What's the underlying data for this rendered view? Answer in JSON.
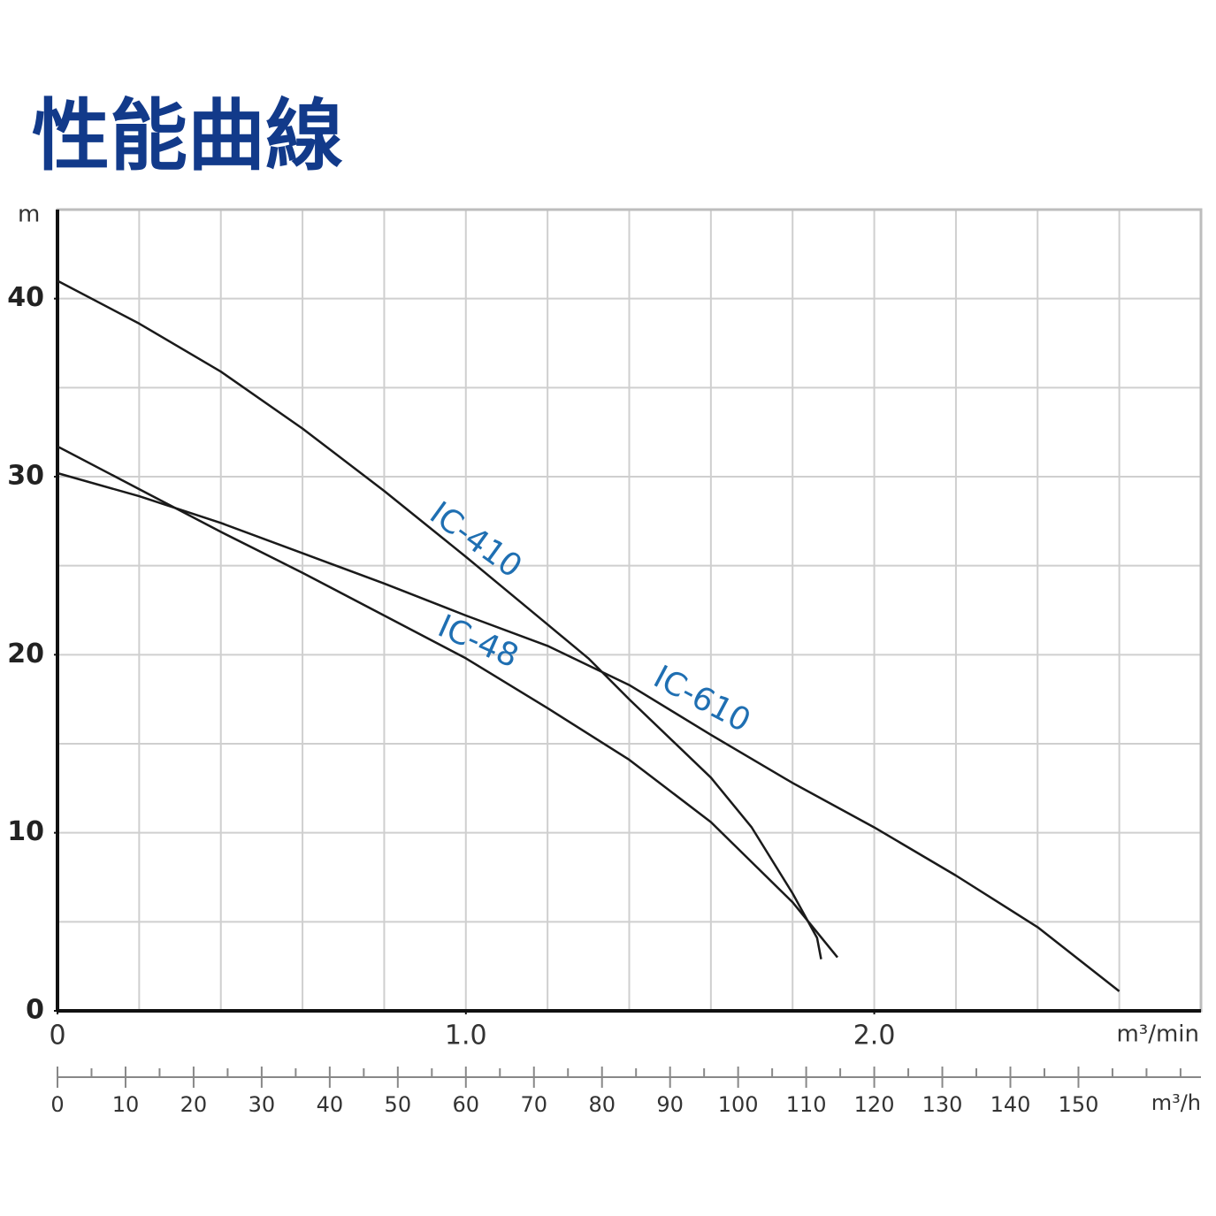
{
  "chart_data": {
    "type": "line",
    "title": "性能曲線",
    "y_label": "m",
    "x_label": "m³/min",
    "x2_label": "m³/h",
    "xlim": [
      0,
      2.8
    ],
    "xticks": [
      0,
      {
        "value": 1.0,
        "label": "1.0"
      },
      {
        "value": 2.0,
        "label": "2.0"
      }
    ],
    "xgrid": [
      0.2,
      0.4,
      0.6,
      0.8,
      1.0,
      1.2,
      1.4,
      1.6,
      1.8,
      2.0,
      2.2,
      2.4,
      2.6
    ],
    "ylim": [
      0,
      45
    ],
    "yticks": [
      0,
      10,
      20,
      30,
      40
    ],
    "ygrid": [
      5,
      10,
      15,
      20,
      25,
      30,
      35,
      40
    ],
    "x2lim": [
      0,
      168
    ],
    "x2ticks": [
      0,
      10,
      20,
      30,
      40,
      50,
      60,
      70,
      80,
      90,
      100,
      110,
      120,
      130,
      140,
      150
    ],
    "x2minor": [
      5,
      15,
      25,
      35,
      45,
      55,
      65,
      75,
      85,
      95,
      105,
      115,
      125,
      135,
      145,
      155,
      160,
      165
    ],
    "grid": true,
    "series": [
      {
        "name": "IC-410",
        "color": "#1a1a1a",
        "x": [
          0,
          0.2,
          0.4,
          0.6,
          0.8,
          1.0,
          1.2,
          1.3,
          1.4,
          1.6,
          1.7,
          1.8,
          1.86,
          1.87
        ],
        "values": [
          41.0,
          38.6,
          35.9,
          32.7,
          29.2,
          25.5,
          21.7,
          19.8,
          17.5,
          13.1,
          10.3,
          6.6,
          4.1,
          2.9
        ]
      },
      {
        "name": "IC-48",
        "color": "#1a1a1a",
        "x": [
          0,
          0.2,
          0.4,
          0.6,
          0.8,
          1.0,
          1.2,
          1.4,
          1.6,
          1.8,
          1.91
        ],
        "values": [
          31.7,
          29.3,
          26.9,
          24.6,
          22.2,
          19.8,
          17.0,
          14.1,
          10.6,
          6.1,
          3.0
        ]
      },
      {
        "name": "IC-610",
        "color": "#1a1a1a",
        "x": [
          0,
          0.2,
          0.4,
          0.6,
          0.8,
          1.0,
          1.2,
          1.4,
          1.6,
          1.8,
          2.0,
          2.2,
          2.4,
          2.6
        ],
        "values": [
          30.2,
          28.9,
          27.4,
          25.7,
          24.0,
          22.2,
          20.5,
          18.3,
          15.5,
          12.8,
          10.3,
          7.6,
          4.7,
          1.1
        ]
      }
    ]
  }
}
